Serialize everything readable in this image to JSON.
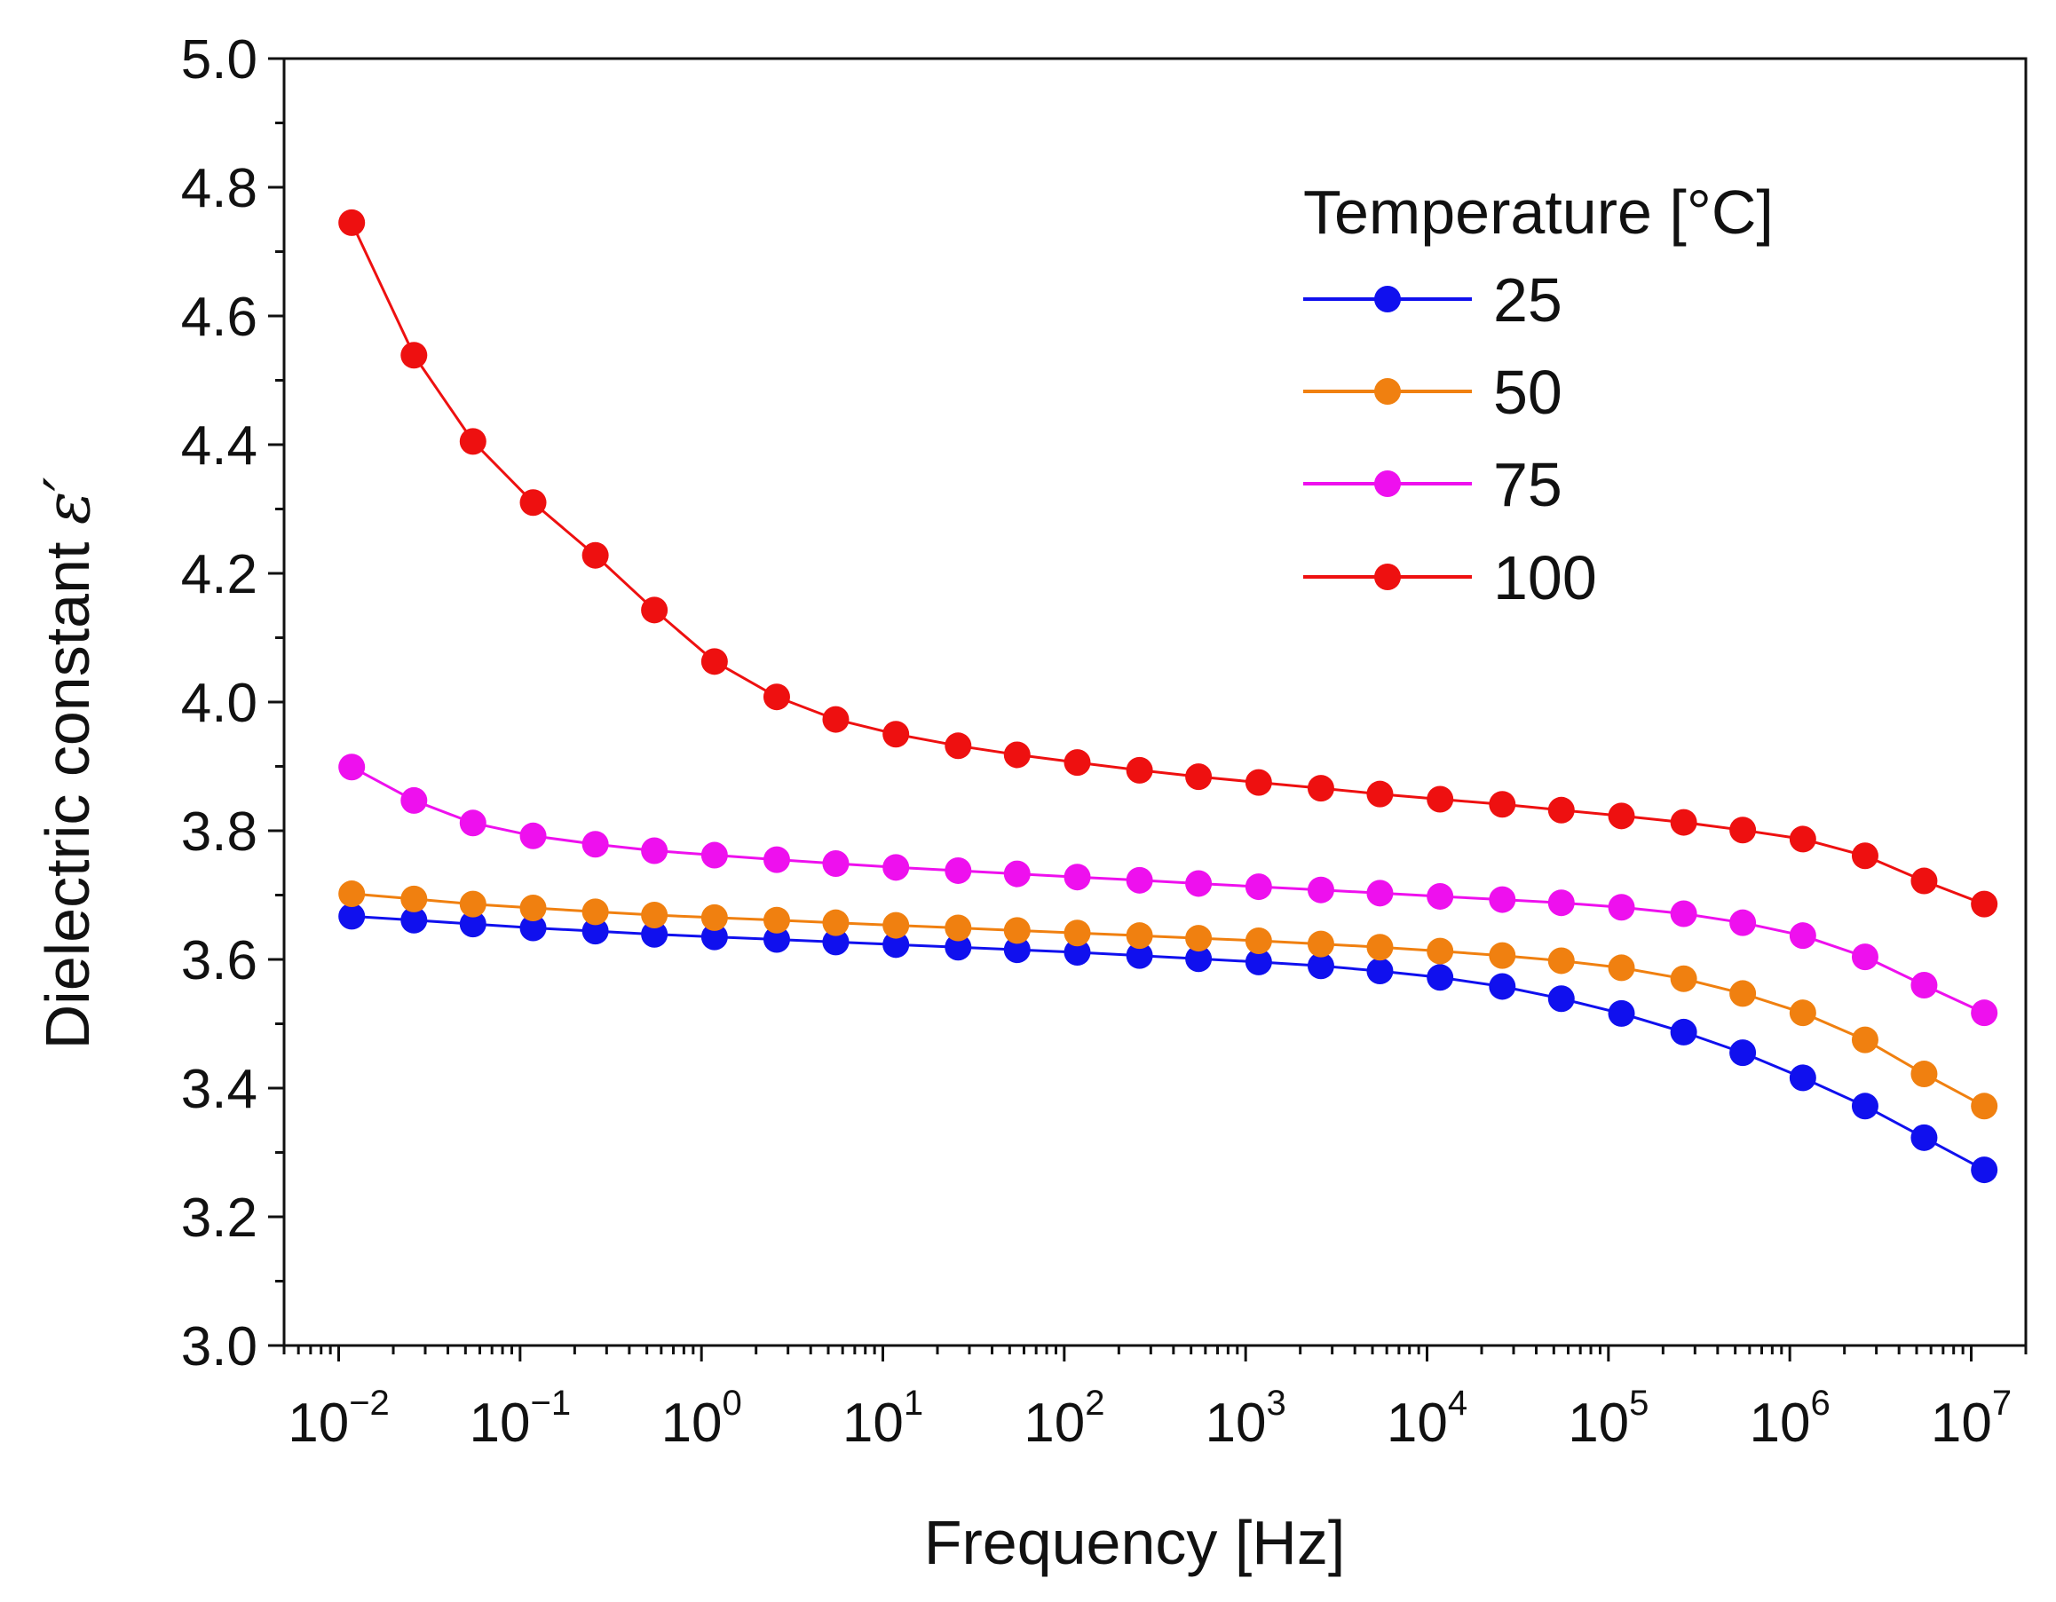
{
  "chart_data": {
    "type": "line",
    "title": "",
    "xlabel": "Frequency [Hz]",
    "ylabel_main": "Dielectric constant ",
    "ylabel_symbol": "ε′",
    "xscale": "log",
    "xlim": [
      0.005,
      20000000
    ],
    "ylim": [
      3.0,
      5.0
    ],
    "x_ticks": [
      {
        "base": "10",
        "exp": "−2",
        "value": 0.01
      },
      {
        "base": "10",
        "exp": "−1",
        "value": 0.1
      },
      {
        "base": "10",
        "exp": "0",
        "value": 1
      },
      {
        "base": "10",
        "exp": "1",
        "value": 10
      },
      {
        "base": "10",
        "exp": "2",
        "value": 100
      },
      {
        "base": "10",
        "exp": "3",
        "value": 1000
      },
      {
        "base": "10",
        "exp": "4",
        "value": 10000
      },
      {
        "base": "10",
        "exp": "5",
        "value": 100000
      },
      {
        "base": "10",
        "exp": "6",
        "value": 1000000
      },
      {
        "base": "10",
        "exp": "7",
        "value": 10000000
      }
    ],
    "y_ticks": [
      "3.0",
      "3.2",
      "3.4",
      "3.6",
      "3.8",
      "4.0",
      "4.2",
      "4.4",
      "4.6",
      "4.8",
      "5.0"
    ],
    "legend_title": "Temperature [°C]",
    "legend_placement": "top-right",
    "x": [
      0.0118,
      0.026,
      0.055,
      0.118,
      0.26,
      0.55,
      1.18,
      2.6,
      5.5,
      11.8,
      26,
      55,
      118,
      260,
      550,
      1180,
      2600,
      5500,
      11800,
      26000,
      55000,
      118000,
      260000,
      550000,
      1180000,
      2600000,
      5500000,
      11800000
    ],
    "series": [
      {
        "name": "25",
        "color": "#1010ee",
        "values": [
          3.667,
          3.661,
          3.655,
          3.649,
          3.644,
          3.639,
          3.635,
          3.631,
          3.627,
          3.623,
          3.619,
          3.615,
          3.611,
          3.606,
          3.601,
          3.596,
          3.59,
          3.582,
          3.572,
          3.558,
          3.539,
          3.516,
          3.487,
          3.455,
          3.416,
          3.372,
          3.323,
          3.273
        ]
      },
      {
        "name": "50",
        "color": "#f08010",
        "values": [
          3.702,
          3.694,
          3.686,
          3.68,
          3.674,
          3.669,
          3.665,
          3.661,
          3.657,
          3.653,
          3.649,
          3.645,
          3.641,
          3.637,
          3.633,
          3.629,
          3.624,
          3.619,
          3.613,
          3.606,
          3.598,
          3.587,
          3.57,
          3.547,
          3.517,
          3.475,
          3.422,
          3.372
        ]
      },
      {
        "name": "75",
        "color": "#ee10ee",
        "values": [
          3.899,
          3.847,
          3.812,
          3.792,
          3.779,
          3.769,
          3.762,
          3.755,
          3.749,
          3.743,
          3.738,
          3.733,
          3.728,
          3.723,
          3.718,
          3.713,
          3.708,
          3.703,
          3.698,
          3.693,
          3.688,
          3.681,
          3.671,
          3.657,
          3.637,
          3.604,
          3.56,
          3.517
        ]
      },
      {
        "name": "100",
        "color": "#ee1010",
        "values": [
          4.745,
          4.539,
          4.405,
          4.31,
          4.228,
          4.143,
          4.063,
          4.008,
          3.973,
          3.95,
          3.932,
          3.918,
          3.906,
          3.894,
          3.884,
          3.875,
          3.866,
          3.857,
          3.849,
          3.841,
          3.832,
          3.823,
          3.813,
          3.801,
          3.787,
          3.761,
          3.722,
          3.686
        ]
      }
    ]
  }
}
